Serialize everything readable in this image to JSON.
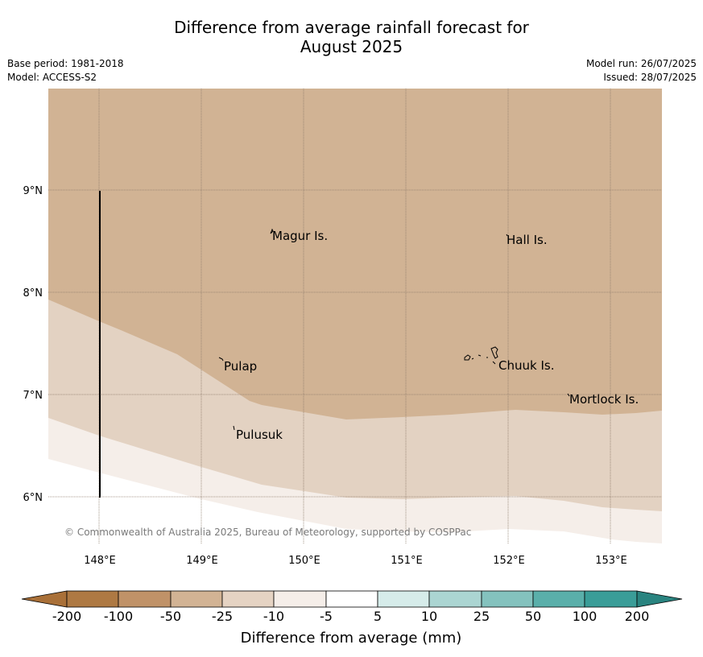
{
  "header": {
    "title_line1": "Difference from average rainfall forecast for",
    "title_line2": "August 2025",
    "base_period": "Base period: 1981-2018",
    "model": "Model: ACCESS-S2",
    "model_run": "Model run: 26/07/2025",
    "issued": "Issued: 28/07/2025"
  },
  "map": {
    "lon_ticks": [
      "148°E",
      "149°E",
      "150°E",
      "151°E",
      "152°E",
      "153°E"
    ],
    "lat_ticks": [
      "9°N",
      "8°N",
      "7°N",
      "6°N"
    ],
    "places": [
      {
        "name": "Magur Is."
      },
      {
        "name": "Hall Is."
      },
      {
        "name": "Pulap"
      },
      {
        "name": "Chuuk Is."
      },
      {
        "name": "Mortlock Is."
      },
      {
        "name": "Pulusuk"
      }
    ],
    "credit": "© Commonwealth of Australia 2025, Bureau of Meteorology, supported by COSPPac"
  },
  "colorbar": {
    "labels": [
      "-200",
      "-100",
      "-50",
      "-25",
      "-10",
      "-5",
      "5",
      "10",
      "25",
      "50",
      "100",
      "200"
    ],
    "colors": [
      "#a97038",
      "#ae7943",
      "#c09268",
      "#d2b394",
      "#e5d3c3",
      "#f5eee9",
      "#ffffff",
      "#d6ecea",
      "#abd5d2",
      "#84c2be",
      "#5aafaa",
      "#3a9d98",
      "#2a8480"
    ],
    "title": "Difference from average (mm)"
  }
}
